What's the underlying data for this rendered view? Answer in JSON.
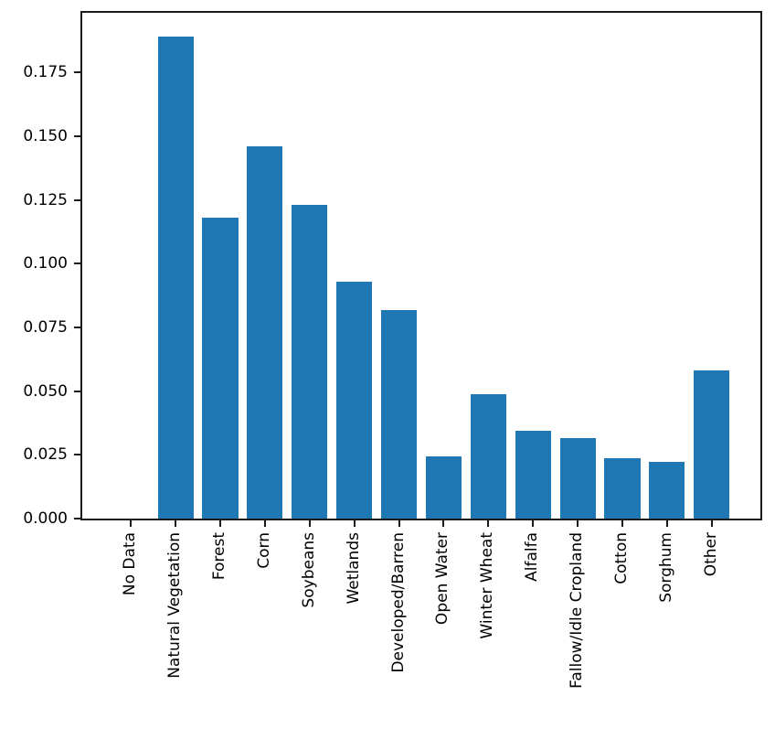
{
  "figure": {
    "background": "#ffffff",
    "title": ""
  },
  "chart_data": {
    "type": "bar",
    "categories": [
      "No Data",
      "Natural Vegetation",
      "Forest",
      "Corn",
      "Soybeans",
      "Wetlands",
      "Developed/Barren",
      "Open Water",
      "Winter Wheat",
      "Alfalfa",
      "Fallow/Idle Cropland",
      "Cotton",
      "Sorghum",
      "Other"
    ],
    "values": [
      0.0,
      0.189,
      0.118,
      0.146,
      0.123,
      0.093,
      0.082,
      0.0245,
      0.049,
      0.0345,
      0.0315,
      0.0238,
      0.0222,
      0.058
    ],
    "title": "",
    "xlabel": "",
    "ylabel": "",
    "ylim": [
      0,
      0.1985
    ],
    "yticks": [
      0.0,
      0.025,
      0.05,
      0.075,
      0.1,
      0.125,
      0.15,
      0.175
    ],
    "ytick_labels": [
      "0.000",
      "0.025",
      "0.050",
      "0.075",
      "0.100",
      "0.125",
      "0.150",
      "0.175"
    ],
    "x_tick_rotation": 90,
    "bar_color": "#1f77b4",
    "axis_color": "#1a1a1a",
    "text_color": "#000000",
    "grid": false,
    "legend": "none"
  }
}
